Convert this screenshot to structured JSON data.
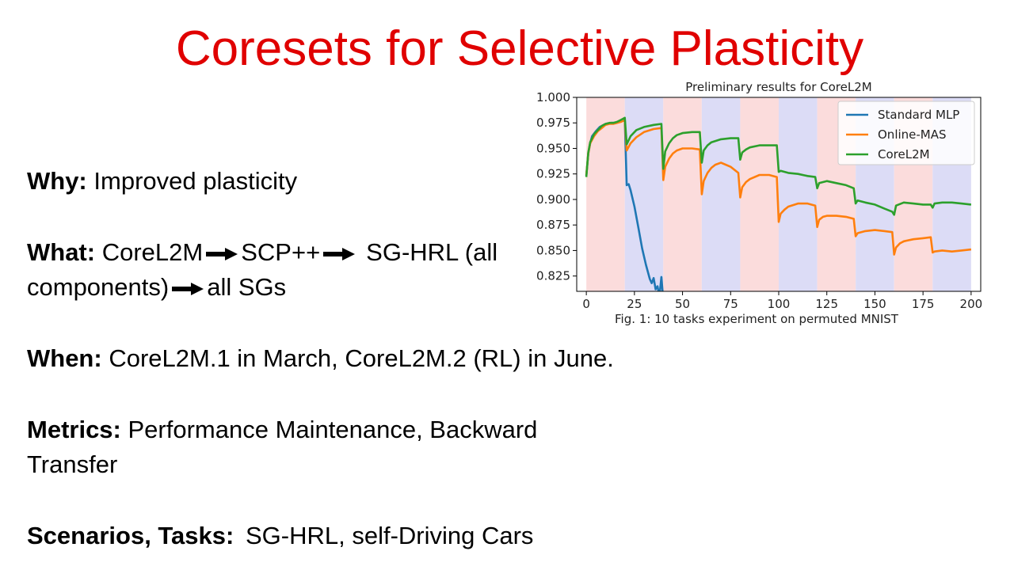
{
  "slide": {
    "title": "Coresets for Selective Plasticity",
    "title_color": "#e00000"
  },
  "bullets": {
    "why_label": "Why:",
    "why_text": "Improved plasticity",
    "what_label": "What:",
    "what_items": [
      "CoreL2M",
      "SCP++",
      "SG-HRL (all components)",
      "all SGs"
    ],
    "when_label": "When:",
    "when_text": "CoreL2M.1 in March, CoreL2M.2 (RL) in June.",
    "metrics_label": "Metrics:",
    "metrics_text": "Performance Maintenance, Backward Transfer",
    "scenarios_label": "Scenarios, Tasks:",
    "scenarios_text": "SG-HRL, self-Driving Cars"
  },
  "chart_data": {
    "type": "line",
    "title": "Preliminary results for CoreL2M",
    "caption": "Fig. 1: 10 tasks experiment on permuted MNIST",
    "xlabel": "",
    "ylabel": "",
    "xlim": [
      -5,
      205
    ],
    "ylim": [
      0.81,
      1.0
    ],
    "xticks": [
      0,
      25,
      50,
      75,
      100,
      125,
      150,
      175,
      200
    ],
    "yticks": [
      0.825,
      0.85,
      0.875,
      0.9,
      0.925,
      0.95,
      0.975,
      1.0
    ],
    "ytick_labels": [
      "0.825",
      "0.850",
      "0.875",
      "0.900",
      "0.925",
      "0.950",
      "0.975",
      "1.000"
    ],
    "grid": false,
    "legend_position": "top-right",
    "task_bands": [
      {
        "x0": 0,
        "x1": 20,
        "color": "#fbdcdc"
      },
      {
        "x0": 20,
        "x1": 40,
        "color": "#dcdcf6"
      },
      {
        "x0": 40,
        "x1": 60,
        "color": "#fbdcdc"
      },
      {
        "x0": 60,
        "x1": 80,
        "color": "#dcdcf6"
      },
      {
        "x0": 80,
        "x1": 100,
        "color": "#fbdcdc"
      },
      {
        "x0": 100,
        "x1": 120,
        "color": "#dcdcf6"
      },
      {
        "x0": 120,
        "x1": 140,
        "color": "#fbdcdc"
      },
      {
        "x0": 140,
        "x1": 160,
        "color": "#dcdcf6"
      },
      {
        "x0": 160,
        "x1": 180,
        "color": "#fbdcdc"
      },
      {
        "x0": 180,
        "x1": 200,
        "color": "#dcdcf6"
      }
    ],
    "series": [
      {
        "name": "Standard MLP",
        "color": "#1f77b4",
        "x": [
          0,
          1,
          2,
          3,
          5,
          7,
          10,
          13,
          15,
          17,
          18,
          19,
          20,
          21,
          22,
          23,
          25,
          27,
          29,
          31,
          33,
          34,
          35,
          36,
          37,
          38,
          39,
          40
        ],
        "y": [
          0.923,
          0.945,
          0.955,
          0.962,
          0.967,
          0.971,
          0.974,
          0.975,
          0.975,
          0.976,
          0.977,
          0.978,
          0.978,
          0.914,
          0.915,
          0.909,
          0.893,
          0.873,
          0.852,
          0.836,
          0.822,
          0.818,
          0.823,
          0.812,
          0.815,
          0.805,
          0.824,
          0.801
        ]
      },
      {
        "name": "Online-MAS",
        "color": "#ff7f0e",
        "x": [
          0,
          1,
          2,
          4,
          6,
          8,
          10,
          12,
          14,
          16,
          18,
          19,
          20,
          21,
          23,
          26,
          30,
          35,
          39,
          40,
          41,
          43,
          45,
          47,
          50,
          55,
          59,
          60,
          61,
          63,
          65,
          67,
          70,
          75,
          79,
          80,
          81,
          83,
          85,
          90,
          95,
          99,
          100,
          101,
          103,
          105,
          110,
          115,
          119,
          120,
          121,
          123,
          125,
          130,
          135,
          139,
          140,
          141,
          145,
          150,
          155,
          159,
          160,
          161,
          163,
          165,
          170,
          175,
          179,
          180,
          181,
          185,
          190,
          195,
          200
        ],
        "y": [
          0.924,
          0.945,
          0.955,
          0.962,
          0.967,
          0.97,
          0.973,
          0.974,
          0.974,
          0.975,
          0.976,
          0.977,
          0.977,
          0.948,
          0.955,
          0.961,
          0.966,
          0.969,
          0.97,
          0.919,
          0.932,
          0.94,
          0.945,
          0.948,
          0.95,
          0.95,
          0.949,
          0.905,
          0.918,
          0.926,
          0.931,
          0.934,
          0.936,
          0.932,
          0.926,
          0.902,
          0.912,
          0.917,
          0.92,
          0.924,
          0.924,
          0.922,
          0.878,
          0.886,
          0.89,
          0.893,
          0.896,
          0.896,
          0.894,
          0.873,
          0.88,
          0.883,
          0.884,
          0.884,
          0.883,
          0.881,
          0.864,
          0.867,
          0.869,
          0.87,
          0.869,
          0.868,
          0.846,
          0.853,
          0.857,
          0.859,
          0.861,
          0.862,
          0.863,
          0.848,
          0.849,
          0.85,
          0.849,
          0.85,
          0.851
        ]
      },
      {
        "name": "CoreL2M",
        "color": "#2ca02c",
        "x": [
          0,
          1,
          2,
          4,
          6,
          8,
          10,
          12,
          14,
          16,
          18,
          19,
          20,
          21,
          23,
          26,
          30,
          35,
          39,
          40,
          41,
          43,
          45,
          47,
          50,
          55,
          59,
          60,
          61,
          63,
          65,
          70,
          75,
          79,
          80,
          81,
          83,
          85,
          90,
          95,
          99,
          100,
          101,
          105,
          110,
          115,
          119,
          120,
          121,
          125,
          130,
          135,
          139,
          140,
          141,
          145,
          150,
          155,
          159,
          160,
          161,
          165,
          170,
          175,
          179,
          180,
          181,
          185,
          190,
          195,
          200
        ],
        "y": [
          0.922,
          0.946,
          0.956,
          0.964,
          0.968,
          0.972,
          0.974,
          0.975,
          0.975,
          0.976,
          0.978,
          0.979,
          0.98,
          0.954,
          0.962,
          0.968,
          0.971,
          0.973,
          0.974,
          0.93,
          0.947,
          0.955,
          0.96,
          0.963,
          0.965,
          0.966,
          0.966,
          0.936,
          0.948,
          0.953,
          0.956,
          0.959,
          0.96,
          0.96,
          0.939,
          0.946,
          0.949,
          0.951,
          0.953,
          0.953,
          0.953,
          0.927,
          0.928,
          0.926,
          0.925,
          0.923,
          0.922,
          0.911,
          0.916,
          0.918,
          0.916,
          0.914,
          0.911,
          0.896,
          0.899,
          0.897,
          0.895,
          0.891,
          0.888,
          0.885,
          0.894,
          0.897,
          0.896,
          0.895,
          0.895,
          0.892,
          0.896,
          0.897,
          0.897,
          0.896,
          0.895
        ]
      }
    ]
  }
}
